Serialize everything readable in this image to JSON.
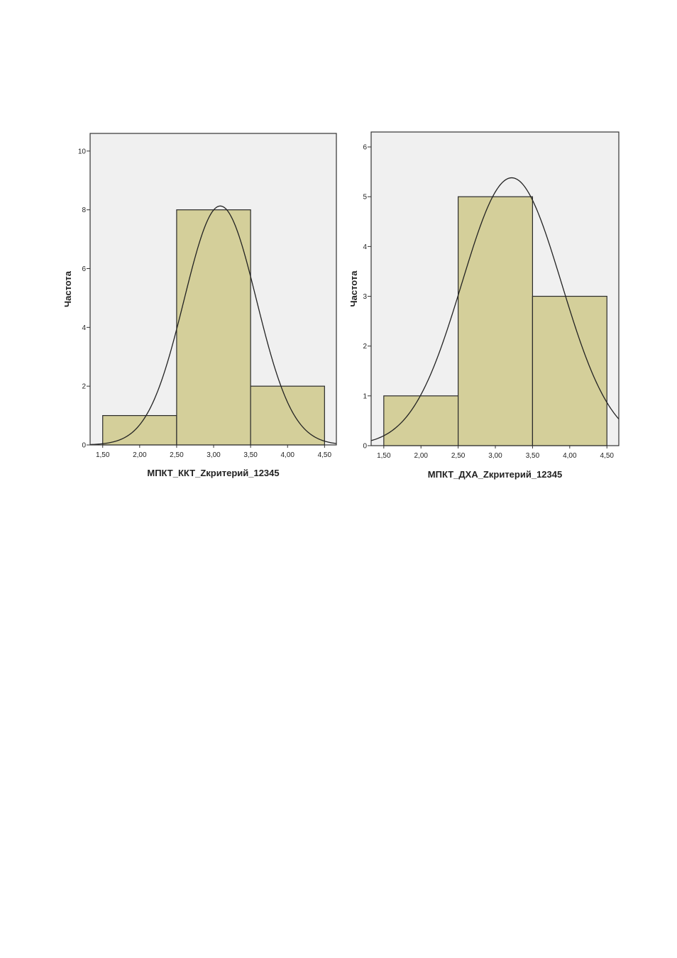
{
  "chart_data": [
    {
      "type": "bar",
      "subtype": "histogram",
      "bins": [
        [
          1.5,
          2.5
        ],
        [
          2.5,
          3.5
        ],
        [
          3.5,
          4.5
        ]
      ],
      "values": [
        1,
        8,
        2
      ],
      "xlabel": "МПКТ_ККТ_Zкритерий_12345",
      "ylabel": "Частота",
      "xlim": [
        1.33,
        4.66
      ],
      "ylim": [
        0,
        10.6
      ],
      "x_ticks": [
        1.5,
        2.0,
        2.5,
        3.0,
        3.5,
        4.0,
        4.5
      ],
      "x_tick_labels": [
        "1,50",
        "2,00",
        "2,50",
        "3,00",
        "3,50",
        "4,00",
        "4,50"
      ],
      "y_ticks": [
        0,
        2,
        4,
        6,
        8,
        10
      ],
      "y_tick_labels": [
        "0",
        "2",
        "4",
        "6",
        "8",
        "10"
      ],
      "normal_curve": {
        "mean": 3.09,
        "sd": 0.49,
        "peak": 8.13
      },
      "bar_color": "#d4cf9a",
      "plot_background": "#f0f0f0",
      "grid": false,
      "legend": "none"
    },
    {
      "type": "bar",
      "subtype": "histogram",
      "bins": [
        [
          1.5,
          2.5
        ],
        [
          2.5,
          3.5
        ],
        [
          3.5,
          4.5
        ]
      ],
      "values": [
        1,
        5,
        3
      ],
      "xlabel": "МПКТ_ДХА_Zкритерий_12345",
      "ylabel": "Частота",
      "xlim": [
        1.33,
        4.66
      ],
      "ylim": [
        0,
        6.3
      ],
      "x_ticks": [
        1.5,
        2.0,
        2.5,
        3.0,
        3.5,
        4.0,
        4.5
      ],
      "x_tick_labels": [
        "1,50",
        "2,00",
        "2,50",
        "3,00",
        "3,50",
        "4,00",
        "4,50"
      ],
      "y_ticks": [
        0,
        1,
        2,
        3,
        4,
        5,
        6
      ],
      "y_tick_labels": [
        "0",
        "1",
        "2",
        "3",
        "4",
        "5",
        "6"
      ],
      "normal_curve": {
        "mean": 3.22,
        "sd": 0.67,
        "peak": 5.38
      },
      "bar_color": "#d4cf9a",
      "plot_background": "#f0f0f0",
      "grid": false,
      "legend": "none"
    }
  ]
}
